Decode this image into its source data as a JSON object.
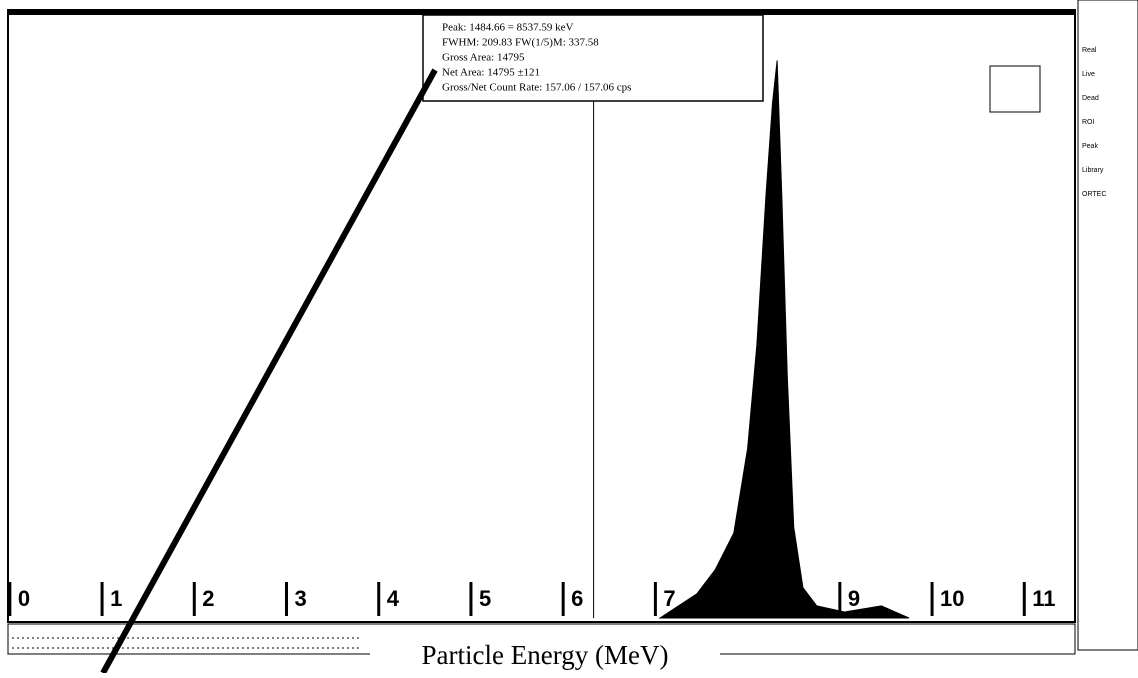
{
  "chart_data": {
    "type": "area",
    "x_label": "Particle Energy (MeV)",
    "annotation": [
      "Peak: 1484.66 = 8537.59 keV",
      "FWHM: 209.83  FW(1/5)M: 337.58",
      "Gross Area: 14795",
      "Net Area: 14795 ±121",
      "Gross/Net Count Rate: 157.06 / 157.06 cps"
    ],
    "x": [
      7.05,
      7.25,
      7.45,
      7.65,
      7.85,
      8.0,
      8.1,
      8.2,
      8.27,
      8.32,
      8.37,
      8.43,
      8.5,
      8.6,
      8.75,
      9.05,
      9.45,
      9.75
    ],
    "values": [
      0,
      2,
      4,
      8,
      14,
      28,
      45,
      70,
      85,
      92,
      70,
      40,
      15,
      5,
      2,
      1,
      2,
      0
    ],
    "color": "#000000",
    "xlim": [
      -0.02,
      11.55
    ],
    "xticks": [
      0,
      1,
      2,
      3,
      4,
      5,
      6,
      7,
      8,
      9,
      10,
      11
    ],
    "ylim": [
      0,
      100
    ],
    "cursor": 6.33
  },
  "sidebar": [
    "Real",
    "Live",
    "Dead",
    "ROI",
    "Peak",
    "Library",
    "ORTEC"
  ]
}
